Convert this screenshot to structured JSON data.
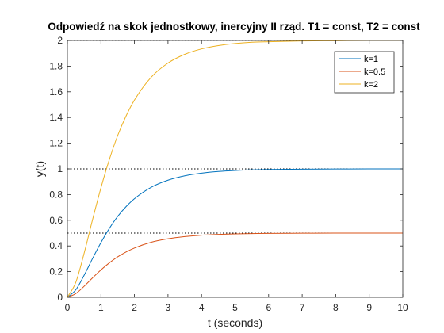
{
  "chart_data": {
    "type": "line",
    "title": "Odpowiedź na skok jednostkowy, inercyjny II rząd. T1 = const, T2 = const",
    "xlabel": "t (seconds)",
    "ylabel": "y(t)",
    "xlim": [
      0,
      10
    ],
    "ylim": [
      0,
      2
    ],
    "xticks": [
      "0",
      "1",
      "2",
      "3",
      "4",
      "5",
      "6",
      "7",
      "8",
      "9",
      "10"
    ],
    "yticks": [
      "0",
      "0.2",
      "0.4",
      "0.6",
      "0.8",
      "1",
      "1.2",
      "1.4",
      "1.6",
      "1.8",
      "2"
    ],
    "grid": false,
    "legend_position": "top-right",
    "reference_lines": [
      0.5,
      1,
      2
    ],
    "x": [
      0,
      0.25,
      0.5,
      0.75,
      1,
      1.25,
      1.5,
      1.75,
      2,
      2.5,
      3,
      3.5,
      4,
      4.5,
      5,
      5.5,
      6,
      7,
      8,
      9,
      10
    ],
    "series": [
      {
        "name": "k=1",
        "color": "#0072BD",
        "values": [
          0,
          0.058,
          0.172,
          0.302,
          0.426,
          0.536,
          0.63,
          0.706,
          0.768,
          0.857,
          0.912,
          0.946,
          0.967,
          0.98,
          0.988,
          0.993,
          0.995,
          0.998,
          0.999,
          1.0,
          1.0
        ]
      },
      {
        "name": "k=0.5",
        "color": "#D95319",
        "values": [
          0,
          0.029,
          0.086,
          0.151,
          0.213,
          0.268,
          0.315,
          0.353,
          0.384,
          0.429,
          0.456,
          0.473,
          0.484,
          0.49,
          0.494,
          0.496,
          0.498,
          0.499,
          0.5,
          0.5,
          0.5
        ]
      },
      {
        "name": "k=2",
        "color": "#EDB120",
        "values": [
          0,
          0.116,
          0.344,
          0.604,
          0.852,
          1.072,
          1.26,
          1.412,
          1.536,
          1.714,
          1.824,
          1.892,
          1.934,
          1.96,
          1.976,
          1.986,
          1.99,
          1.996,
          1.998,
          2.0,
          2.0
        ]
      }
    ]
  }
}
